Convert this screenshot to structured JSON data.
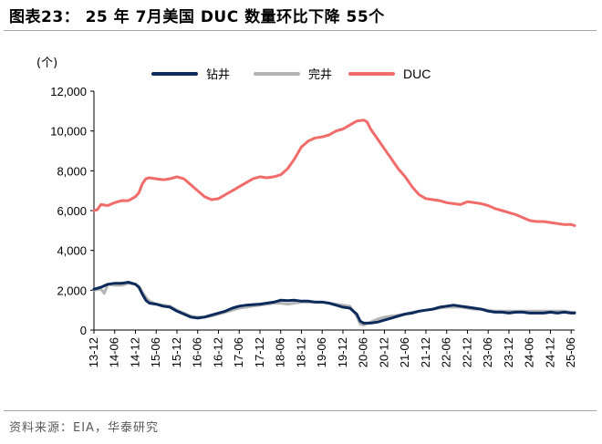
{
  "title": "图表23：  25 年 7月美国 DUC 数量环比下降 55个",
  "source": "资料来源：EIA，华泰研究",
  "colors": {
    "drilled": "#0c2a5b",
    "completed": "#b4b4b4",
    "duc": "#f26b6b"
  },
  "chart_data": {
    "type": "line",
    "unit_label": "(个)",
    "ylim": [
      0,
      12000
    ],
    "yticks": [
      "0",
      "2,000",
      "4,000",
      "6,000",
      "8,000",
      "10,000",
      "12,000"
    ],
    "ytick_values": [
      0,
      2000,
      4000,
      6000,
      8000,
      10000,
      12000
    ],
    "xtick_labels": [
      "13-12",
      "14-06",
      "14-12",
      "15-06",
      "15-12",
      "16-06",
      "16-12",
      "17-06",
      "17-12",
      "18-06",
      "18-12",
      "19-06",
      "19-12",
      "20-06",
      "20-12",
      "21-06",
      "21-12",
      "22-06",
      "22-12",
      "23-06",
      "23-12",
      "24-06",
      "24-12",
      "25-06"
    ],
    "legend_position": "top",
    "series": [
      {
        "name": "钻井",
        "key": "drilled",
        "points": [
          [
            "13-12",
            2050
          ],
          [
            "14-02",
            2150
          ],
          [
            "14-04",
            2300
          ],
          [
            "14-06",
            2350
          ],
          [
            "14-08",
            2350
          ],
          [
            "14-10",
            2400
          ],
          [
            "14-12",
            2300
          ],
          [
            "15-01",
            2150
          ],
          [
            "15-02",
            1800
          ],
          [
            "15-03",
            1500
          ],
          [
            "15-04",
            1350
          ],
          [
            "15-06",
            1300
          ],
          [
            "15-08",
            1200
          ],
          [
            "15-10",
            1150
          ],
          [
            "15-12",
            950
          ],
          [
            "16-02",
            800
          ],
          [
            "16-04",
            650
          ],
          [
            "16-06",
            600
          ],
          [
            "16-08",
            650
          ],
          [
            "16-10",
            750
          ],
          [
            "16-12",
            850
          ],
          [
            "17-02",
            950
          ],
          [
            "17-04",
            1100
          ],
          [
            "17-06",
            1200
          ],
          [
            "17-08",
            1250
          ],
          [
            "17-10",
            1280
          ],
          [
            "17-12",
            1300
          ],
          [
            "18-02",
            1350
          ],
          [
            "18-04",
            1400
          ],
          [
            "18-06",
            1500
          ],
          [
            "18-08",
            1480
          ],
          [
            "18-10",
            1500
          ],
          [
            "18-12",
            1450
          ],
          [
            "19-02",
            1450
          ],
          [
            "19-04",
            1400
          ],
          [
            "19-06",
            1400
          ],
          [
            "19-08",
            1350
          ],
          [
            "19-10",
            1250
          ],
          [
            "19-12",
            1150
          ],
          [
            "20-02",
            1100
          ],
          [
            "20-04",
            800
          ],
          [
            "20-05",
            450
          ],
          [
            "20-06",
            350
          ],
          [
            "20-08",
            350
          ],
          [
            "20-10",
            400
          ],
          [
            "20-12",
            500
          ],
          [
            "21-02",
            600
          ],
          [
            "21-04",
            700
          ],
          [
            "21-06",
            800
          ],
          [
            "21-08",
            850
          ],
          [
            "21-10",
            950
          ],
          [
            "21-12",
            1000
          ],
          [
            "22-02",
            1050
          ],
          [
            "22-04",
            1150
          ],
          [
            "22-06",
            1200
          ],
          [
            "22-08",
            1250
          ],
          [
            "22-10",
            1200
          ],
          [
            "22-12",
            1150
          ],
          [
            "23-02",
            1100
          ],
          [
            "23-04",
            1050
          ],
          [
            "23-06",
            950
          ],
          [
            "23-08",
            900
          ],
          [
            "23-10",
            900
          ],
          [
            "23-12",
            850
          ],
          [
            "24-02",
            900
          ],
          [
            "24-04",
            900
          ],
          [
            "24-06",
            850
          ],
          [
            "24-08",
            850
          ],
          [
            "24-10",
            850
          ],
          [
            "24-12",
            900
          ],
          [
            "25-02",
            850
          ],
          [
            "25-04",
            900
          ],
          [
            "25-06",
            850
          ],
          [
            "25-07",
            850
          ]
        ]
      },
      {
        "name": "完井",
        "key": "completed",
        "points": [
          [
            "13-12",
            2000
          ],
          [
            "14-02",
            2050
          ],
          [
            "14-03",
            1850
          ],
          [
            "14-04",
            2300
          ],
          [
            "14-06",
            2250
          ],
          [
            "14-08",
            2250
          ],
          [
            "14-10",
            2350
          ],
          [
            "14-12",
            2300
          ],
          [
            "15-01",
            2200
          ],
          [
            "15-02",
            1900
          ],
          [
            "15-03",
            1650
          ],
          [
            "15-04",
            1450
          ],
          [
            "15-06",
            1300
          ],
          [
            "15-08",
            1250
          ],
          [
            "15-10",
            1200
          ],
          [
            "15-12",
            1000
          ],
          [
            "16-02",
            850
          ],
          [
            "16-04",
            700
          ],
          [
            "16-06",
            650
          ],
          [
            "16-08",
            650
          ],
          [
            "16-10",
            700
          ],
          [
            "16-12",
            800
          ],
          [
            "17-02",
            900
          ],
          [
            "17-04",
            1000
          ],
          [
            "17-06",
            1100
          ],
          [
            "17-08",
            1150
          ],
          [
            "17-10",
            1200
          ],
          [
            "17-12",
            1250
          ],
          [
            "18-02",
            1300
          ],
          [
            "18-04",
            1350
          ],
          [
            "18-06",
            1350
          ],
          [
            "18-08",
            1300
          ],
          [
            "18-10",
            1350
          ],
          [
            "18-12",
            1400
          ],
          [
            "19-02",
            1400
          ],
          [
            "19-04",
            1400
          ],
          [
            "19-06",
            1400
          ],
          [
            "19-08",
            1350
          ],
          [
            "19-10",
            1300
          ],
          [
            "19-12",
            1250
          ],
          [
            "20-02",
            1200
          ],
          [
            "20-04",
            700
          ],
          [
            "20-05",
            300
          ],
          [
            "20-06",
            250
          ],
          [
            "20-08",
            400
          ],
          [
            "20-10",
            550
          ],
          [
            "20-12",
            650
          ],
          [
            "21-02",
            700
          ],
          [
            "21-04",
            750
          ],
          [
            "21-06",
            800
          ],
          [
            "21-08",
            900
          ],
          [
            "21-10",
            950
          ],
          [
            "21-12",
            1000
          ],
          [
            "22-02",
            1050
          ],
          [
            "22-04",
            1100
          ],
          [
            "22-06",
            1150
          ],
          [
            "22-08",
            1150
          ],
          [
            "22-10",
            1150
          ],
          [
            "22-12",
            1100
          ],
          [
            "23-02",
            1050
          ],
          [
            "23-04",
            1050
          ],
          [
            "23-06",
            1000
          ],
          [
            "23-08",
            950
          ],
          [
            "23-10",
            950
          ],
          [
            "23-12",
            950
          ],
          [
            "24-02",
            950
          ],
          [
            "24-04",
            950
          ],
          [
            "24-06",
            950
          ],
          [
            "24-08",
            950
          ],
          [
            "24-10",
            950
          ],
          [
            "24-12",
            950
          ],
          [
            "25-02",
            950
          ],
          [
            "25-04",
            950
          ],
          [
            "25-06",
            900
          ],
          [
            "25-07",
            900
          ]
        ]
      },
      {
        "name": "DUC",
        "key": "duc",
        "points": [
          [
            "13-12",
            6000
          ],
          [
            "14-01",
            6050
          ],
          [
            "14-02",
            6300
          ],
          [
            "14-04",
            6250
          ],
          [
            "14-06",
            6400
          ],
          [
            "14-08",
            6500
          ],
          [
            "14-10",
            6500
          ],
          [
            "14-12",
            6700
          ],
          [
            "15-01",
            6900
          ],
          [
            "15-02",
            7350
          ],
          [
            "15-03",
            7600
          ],
          [
            "15-04",
            7650
          ],
          [
            "15-06",
            7600
          ],
          [
            "15-08",
            7550
          ],
          [
            "15-10",
            7600
          ],
          [
            "15-12",
            7700
          ],
          [
            "16-02",
            7600
          ],
          [
            "16-04",
            7300
          ],
          [
            "16-06",
            7000
          ],
          [
            "16-08",
            6700
          ],
          [
            "16-10",
            6550
          ],
          [
            "16-12",
            6600
          ],
          [
            "17-02",
            6800
          ],
          [
            "17-04",
            7000
          ],
          [
            "17-06",
            7200
          ],
          [
            "17-08",
            7400
          ],
          [
            "17-10",
            7600
          ],
          [
            "17-12",
            7700
          ],
          [
            "18-02",
            7650
          ],
          [
            "18-04",
            7700
          ],
          [
            "18-06",
            7800
          ],
          [
            "18-08",
            8100
          ],
          [
            "18-10",
            8600
          ],
          [
            "18-12",
            9200
          ],
          [
            "19-02",
            9500
          ],
          [
            "19-04",
            9650
          ],
          [
            "19-06",
            9700
          ],
          [
            "19-08",
            9800
          ],
          [
            "19-10",
            10000
          ],
          [
            "19-12",
            10100
          ],
          [
            "20-02",
            10300
          ],
          [
            "20-04",
            10500
          ],
          [
            "20-06",
            10550
          ],
          [
            "20-07",
            10450
          ],
          [
            "20-08",
            10100
          ],
          [
            "20-10",
            9600
          ],
          [
            "20-12",
            9100
          ],
          [
            "21-02",
            8600
          ],
          [
            "21-04",
            8100
          ],
          [
            "21-06",
            7700
          ],
          [
            "21-08",
            7200
          ],
          [
            "21-10",
            6800
          ],
          [
            "21-12",
            6600
          ],
          [
            "22-02",
            6550
          ],
          [
            "22-04",
            6500
          ],
          [
            "22-06",
            6400
          ],
          [
            "22-08",
            6350
          ],
          [
            "22-10",
            6300
          ],
          [
            "22-12",
            6450
          ],
          [
            "23-02",
            6400
          ],
          [
            "23-04",
            6350
          ],
          [
            "23-06",
            6250
          ],
          [
            "23-08",
            6100
          ],
          [
            "23-10",
            6000
          ],
          [
            "23-12",
            5900
          ],
          [
            "24-02",
            5800
          ],
          [
            "24-04",
            5650
          ],
          [
            "24-06",
            5500
          ],
          [
            "24-08",
            5450
          ],
          [
            "24-10",
            5450
          ],
          [
            "24-12",
            5400
          ],
          [
            "25-02",
            5350
          ],
          [
            "25-04",
            5300
          ],
          [
            "25-06",
            5300
          ],
          [
            "25-07",
            5250
          ]
        ]
      }
    ]
  }
}
